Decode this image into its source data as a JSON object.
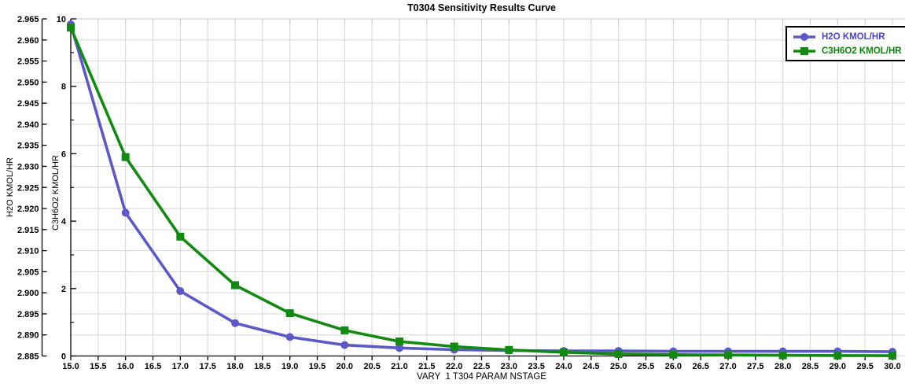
{
  "chart_data": {
    "type": "line",
    "title": "T0304 Sensitivity Results Curve",
    "xlabel": "VARY  1 T304 PARAM NSTAGE",
    "grid": true,
    "legend_position": "top-right",
    "x_axis": {
      "min": 15,
      "max": 30,
      "tick_step": 0.5,
      "decimals": 1
    },
    "y_axis_outer": {
      "label": "H2O KMOL/HR",
      "min": 2.885,
      "max": 2.965,
      "tick_step": 0.005,
      "decimals": 3
    },
    "y_axis_inner": {
      "label": "C3H6O2 KMOL/HR",
      "min": 0,
      "max": 10,
      "tick_step": 2,
      "minor_step": 1,
      "decimals": 0
    },
    "x": [
      15,
      16,
      17,
      18,
      19,
      20,
      21,
      22,
      23,
      24,
      25,
      26,
      27,
      28,
      29,
      30
    ],
    "series": [
      {
        "name": "H2O KMOL/HR",
        "slug": "h2o",
        "axis": "outer",
        "marker": "circle",
        "color": "#5B58C7",
        "text_color": "#4843CC",
        "values": [
          2.9637,
          2.919,
          2.9004,
          2.8928,
          2.8895,
          2.8876,
          2.8869,
          2.8865,
          2.8863,
          2.8862,
          2.8862,
          2.8861,
          2.8861,
          2.8861,
          2.8861,
          2.886
        ]
      },
      {
        "name": "C3H6O2 KMOL/HR",
        "slug": "c3h6o2",
        "axis": "inner",
        "marker": "square",
        "color": "#128A12",
        "text_color": "#0B840B",
        "values": [
          9.74,
          5.9,
          3.54,
          2.1,
          1.27,
          0.76,
          0.43,
          0.28,
          0.18,
          0.11,
          0.06,
          0.04,
          0.03,
          0.02,
          0.015,
          0.01
        ]
      }
    ],
    "colors": {
      "background": "#ffffff",
      "grid": "#d6d6d6",
      "top_border": "#c8c8c8",
      "axis": "#000000"
    }
  }
}
